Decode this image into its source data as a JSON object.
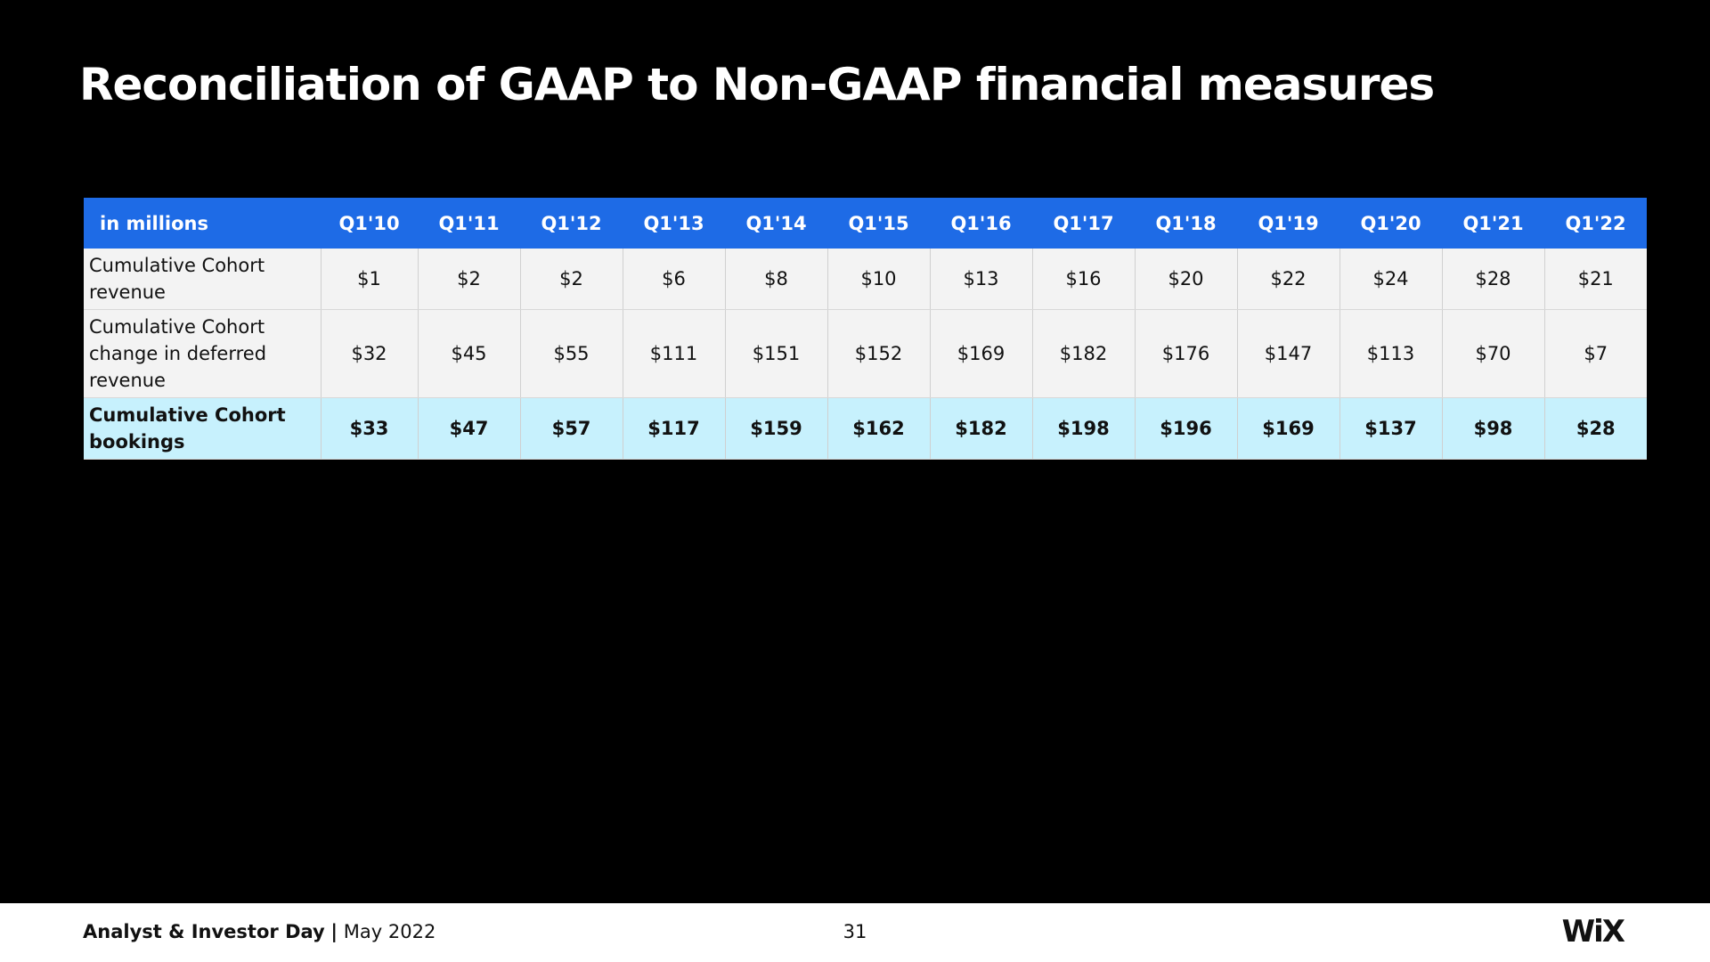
{
  "header": {
    "title": "Reconciliation of GAAP to Non-GAAP financial measures"
  },
  "table": {
    "columns": [
      "in millions",
      "Q1'10",
      "Q1'11",
      "Q1'12",
      "Q1'13",
      "Q1'14",
      "Q1'15",
      "Q1'16",
      "Q1'17",
      "Q1'18",
      "Q1'19",
      "Q1'20",
      "Q1'21",
      "Q1'22"
    ],
    "rows": [
      [
        "Cumulative Cohort revenue",
        "$1",
        "$2",
        "$2",
        "$6",
        "$8",
        "$10",
        "$13",
        "$16",
        "$20",
        "$22",
        "$24",
        "$28",
        "$21"
      ],
      [
        "Cumulative Cohort change in deferred revenue",
        "$32",
        "$45",
        "$55",
        "$111",
        "$151",
        "$152",
        "$169",
        "$182",
        "$176",
        "$147",
        "$113",
        "$70",
        "$7"
      ],
      [
        "Cumulative Cohort bookings",
        "$33",
        "$47",
        "$57",
        "$117",
        "$159",
        "$162",
        "$182",
        "$198",
        "$196",
        "$169",
        "$137",
        "$98",
        "$28"
      ]
    ]
  },
  "footer": {
    "event": "Analyst & Investor Day",
    "separator": "|",
    "date": "May 2022",
    "page": "31",
    "logo": "WiX"
  }
}
